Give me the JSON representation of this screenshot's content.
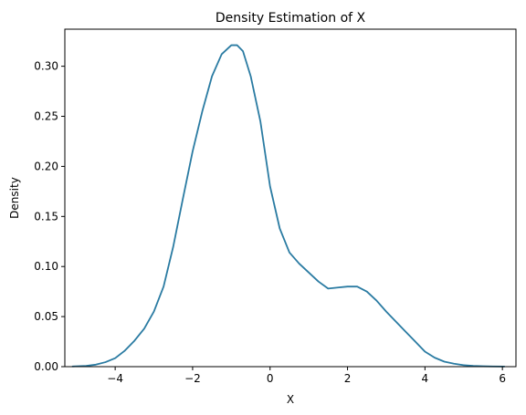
{
  "chart_data": {
    "type": "line",
    "title": "Density Estimation of X",
    "xlabel": "X",
    "ylabel": "Density",
    "xlim": [
      -5.3,
      6.35
    ],
    "ylim": [
      0.0,
      0.337
    ],
    "grid": false,
    "x_ticks": [
      -4,
      -2,
      0,
      2,
      4,
      6
    ],
    "x_tick_labels": [
      "−4",
      "−2",
      "0",
      "2",
      "4",
      "6"
    ],
    "y_ticks": [
      0.0,
      0.05,
      0.1,
      0.15,
      0.2,
      0.25,
      0.3
    ],
    "y_tick_labels": [
      "0.00",
      "0.05",
      "0.10",
      "0.15",
      "0.20",
      "0.25",
      "0.30"
    ],
    "series": [
      {
        "color": "#2a7ba2",
        "x": [
          -5.1,
          -4.75,
          -4.5,
          -4.25,
          -4.0,
          -3.75,
          -3.5,
          -3.25,
          -3.0,
          -2.75,
          -2.5,
          -2.25,
          -2.0,
          -1.75,
          -1.5,
          -1.25,
          -1.0,
          -0.85,
          -0.7,
          -0.5,
          -0.25,
          0.0,
          0.25,
          0.5,
          0.75,
          1.0,
          1.25,
          1.5,
          1.75,
          2.0,
          2.25,
          2.5,
          2.75,
          3.0,
          3.25,
          3.5,
          3.75,
          4.0,
          4.25,
          4.5,
          4.75,
          5.0,
          5.25,
          5.5,
          5.75,
          6.05
        ],
        "y": [
          0.0002,
          0.0008,
          0.002,
          0.0045,
          0.0085,
          0.016,
          0.026,
          0.038,
          0.055,
          0.08,
          0.12,
          0.168,
          0.215,
          0.255,
          0.29,
          0.312,
          0.321,
          0.321,
          0.315,
          0.29,
          0.245,
          0.18,
          0.138,
          0.114,
          0.103,
          0.094,
          0.085,
          0.078,
          0.079,
          0.08,
          0.08,
          0.075,
          0.066,
          0.055,
          0.045,
          0.035,
          0.025,
          0.015,
          0.009,
          0.005,
          0.003,
          0.0015,
          0.0008,
          0.0004,
          0.0002,
          0.0001
        ]
      }
    ]
  }
}
